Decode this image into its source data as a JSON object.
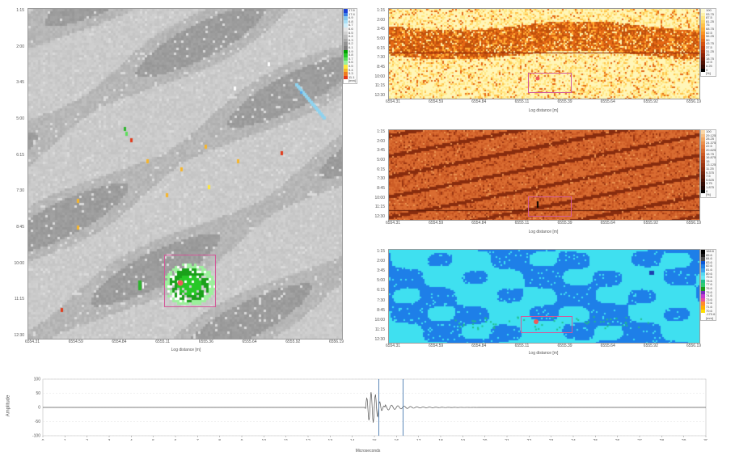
{
  "panels": {
    "main": {
      "yticks": [
        "1:15",
        "2:00",
        "3:45",
        "5:00",
        "6:15",
        "7:30",
        "8:45",
        "10:00",
        "11:15",
        "12:30"
      ],
      "xticks": [
        "6554.31",
        "6554.59",
        "6554.84",
        "6555.11",
        "6555.36",
        "6555.64",
        "6555.92",
        "6556.19"
      ],
      "xlabel": "Log distance [m]",
      "legend": [
        "17.6",
        "17.4",
        "6.9",
        "6.8",
        "6.7",
        "6.6",
        "6.5",
        "6.4",
        "6.3",
        "6.2",
        "6.1",
        "5.9",
        "5.8",
        "5.7",
        "5.6",
        "5.5",
        "5.4",
        "5.3",
        "11.1",
        "[mm]"
      ],
      "legend_colors": [
        "#1a3fd6",
        "#3a7fe8",
        "#86c8ee",
        "#a9dff5",
        "#cfeefa",
        "#e6e6e6",
        "#d2d2d2",
        "#bebebe",
        "#a8a8a8",
        "#939393",
        "#7f7f7f",
        "#00a000",
        "#27c827",
        "#5ae05a",
        "#9cf09c",
        "#ffe83a",
        "#f7b52a",
        "#ef7a1e",
        "#e23a1a",
        "#ffffff"
      ]
    },
    "tr1": {
      "yticks": [
        "1:15",
        "2:00",
        "3:45",
        "5:00",
        "6:15",
        "7:30",
        "8:45",
        "10:00",
        "11:15",
        "12:30"
      ],
      "xticks": [
        "6554.31",
        "6554.59",
        "6554.84",
        "6555.11",
        "6555.39",
        "6555.64",
        "6555.92",
        "6556.19"
      ],
      "xlabel": "Log distance [m]",
      "legend": [
        "100",
        "93.75",
        "87.5",
        "81.25",
        "75",
        "68.75",
        "62.5",
        "56.25",
        "50",
        "43.75",
        "37.5",
        "31.25",
        "25",
        "18.75",
        "12.5",
        "6.25",
        "0",
        "[%]"
      ],
      "legend_colors": [
        "#fffbd0",
        "#fff2a8",
        "#ffe783",
        "#ffd663",
        "#ffc24a",
        "#ffad36",
        "#fb9626",
        "#f27f1b",
        "#e56814",
        "#d5520f",
        "#c03f0b",
        "#a82f08",
        "#8d2306",
        "#701904",
        "#521102",
        "#350901",
        "#000000",
        "#ffffff"
      ]
    },
    "tr2": {
      "yticks": [
        "1:15",
        "2:00",
        "3:45",
        "5:00",
        "6:15",
        "7:30",
        "8:45",
        "10:00",
        "11:15",
        "12:30"
      ],
      "xticks": [
        "6554.31",
        "6554.59",
        "6554.84",
        "6555.11",
        "6555.39",
        "6555.64",
        "6555.92",
        "6556.19"
      ],
      "xlabel": "Log distance [m]",
      "legend": [
        "100",
        "29.125",
        "28.25",
        "24.375",
        "22.5",
        "20.625",
        "18.75",
        "16.875",
        "15",
        "13.125",
        "11.25",
        "9.375",
        "7.5",
        "5.625",
        "3.75",
        "1.875",
        "0",
        "[%]"
      ],
      "legend_colors": [
        "#fbd7a6",
        "#f7be82",
        "#f2a865",
        "#ec924f",
        "#e47e3e",
        "#da6c31",
        "#cd5c26",
        "#be4e1e",
        "#ad4118",
        "#9b3612",
        "#882c0e",
        "#74230a",
        "#5f1a07",
        "#4a1204",
        "#340b02",
        "#1f0501",
        "#000000",
        "#ffffff"
      ]
    },
    "tr3": {
      "yticks": [
        "1:15",
        "2:00",
        "3:45",
        "5:00",
        "6:15",
        "7:30",
        "8:45",
        "10:00",
        "11:15",
        "12:30"
      ],
      "xticks": [
        "6554.31",
        "6554.59",
        "6554.84",
        "6555.11",
        "6555.39",
        "6555.64",
        "6555.92",
        "6556.19"
      ],
      "xlabel": "Log distance [m]",
      "legend": [
        "166.6",
        "85.6",
        "84.6",
        "83.6",
        "82.6",
        "81.6",
        "80.6",
        "79.6",
        "78.6",
        "77.6",
        "76.6",
        "75.6",
        "74.6",
        "73.6",
        "72.6",
        "71.6",
        "70.6",
        "-170.6",
        "[mm]"
      ],
      "legend_colors": [
        "#000000",
        "#1a1a1a",
        "#4a4a4a",
        "#0a55d6",
        "#1e7fe8",
        "#3aa1f0",
        "#54d8f2",
        "#6ae8f4",
        "#1fbf8a",
        "#2ecc71",
        "#1a9a1a",
        "#7a2cc0",
        "#c43ad0",
        "#e84fa0",
        "#ff8a30",
        "#ffb000",
        "#ffe000",
        "#ffffff",
        "#ffffff"
      ]
    }
  },
  "waveform": {
    "ylabel": "Amplitude",
    "yticks": [
      "100",
      "50",
      "0",
      "-50",
      "-100"
    ],
    "xticks": [
      "0",
      "1",
      "2",
      "3",
      "4",
      "5",
      "6",
      "7",
      "8",
      "9",
      "10",
      "11",
      "12",
      "13",
      "14",
      "15",
      "16",
      "17",
      "18",
      "19",
      "20",
      "21",
      "22",
      "23",
      "24",
      "25",
      "26",
      "27",
      "28",
      "29",
      "30"
    ],
    "xlabel": "Microseconds",
    "cursors_us": [
      15.2,
      16.3
    ]
  }
}
